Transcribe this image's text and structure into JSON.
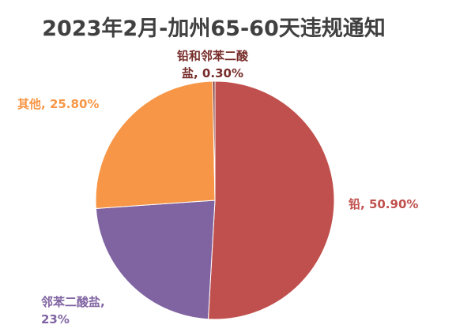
{
  "chart_data": {
    "type": "pie",
    "title": "2023年2月-加州65-60天违规通知",
    "slices": [
      {
        "category": "铅",
        "value": 50.9,
        "label_name": "铅",
        "label_value": "50.90%",
        "color": "#C0504D"
      },
      {
        "category": "邻苯二酸盐",
        "value": 23,
        "label_name": "邻苯二酸盐,",
        "label_value": "23%",
        "color": "#8064A2"
      },
      {
        "category": "其他",
        "value": 25.8,
        "label_name": "其他,",
        "label_value": "25.80%",
        "color": "#F79646"
      },
      {
        "category": "铅和邻苯二酸盐",
        "value": 0.3,
        "label_name": "铅和邻苯二酸",
        "label_value": "盐, 0.30%",
        "color": "#772C2A"
      }
    ]
  }
}
